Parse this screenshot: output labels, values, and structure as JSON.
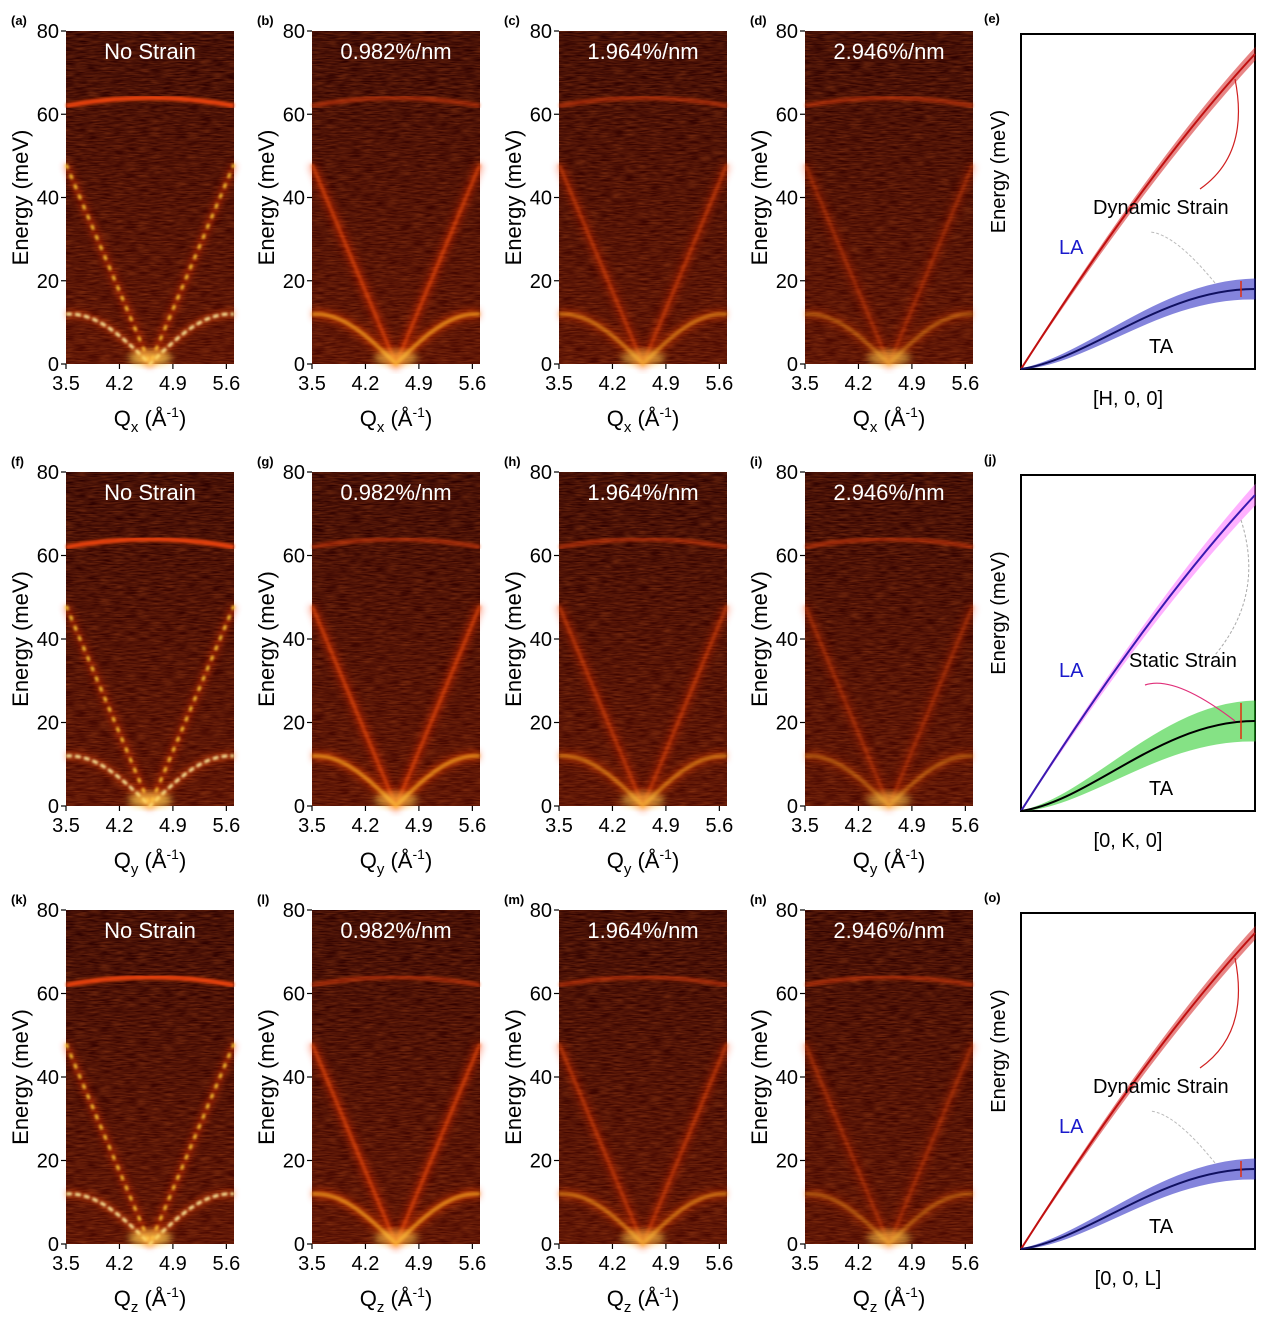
{
  "rows": [
    {
      "qlabel_main": "Q",
      "qlabel_sub": "x",
      "qlabel_unit_pre": " (Å",
      "qlabel_unit_sup": "-1",
      "qlabel_unit_post": ")",
      "panels": [
        {
          "letter": "(a)",
          "title": "No Strain"
        },
        {
          "letter": "(b)",
          "title": "0.982%/nm"
        },
        {
          "letter": "(c)",
          "title": "1.964%/nm"
        },
        {
          "letter": "(d)",
          "title": "2.946%/nm"
        }
      ],
      "schematic": {
        "letter": "(e)",
        "xlabel": "[H, 0, 0]",
        "annotation": "Dynamic Strain",
        "la": "LA",
        "ta": "TA"
      }
    },
    {
      "qlabel_main": "Q",
      "qlabel_sub": "y",
      "qlabel_unit_pre": " (Å",
      "qlabel_unit_sup": "-1",
      "qlabel_unit_post": ")",
      "panels": [
        {
          "letter": "(f)",
          "title": "No Strain"
        },
        {
          "letter": "(g)",
          "title": "0.982%/nm"
        },
        {
          "letter": "(h)",
          "title": "1.964%/nm"
        },
        {
          "letter": "(i)",
          "title": "2.946%/nm"
        }
      ],
      "schematic": {
        "letter": "(j)",
        "xlabel": "[0, K, 0]",
        "annotation": "Static Strain",
        "la": "LA",
        "ta": "TA"
      }
    },
    {
      "qlabel_main": "Q",
      "qlabel_sub": "z",
      "qlabel_unit_pre": " (Å",
      "qlabel_unit_sup": "-1",
      "qlabel_unit_post": ")",
      "panels": [
        {
          "letter": "(k)",
          "title": "No Strain"
        },
        {
          "letter": "(l)",
          "title": "0.982%/nm"
        },
        {
          "letter": "(m)",
          "title": "1.964%/nm"
        },
        {
          "letter": "(n)",
          "title": "2.946%/nm"
        }
      ],
      "schematic": {
        "letter": "(o)",
        "xlabel": "[0, 0, L]",
        "annotation": "Dynamic Strain",
        "la": "LA",
        "ta": "TA"
      }
    }
  ],
  "ylabel": "Energy (meV)",
  "chart_data": {
    "type": "heatmap",
    "x_ticks": [
      "3.5",
      "4.2",
      "4.9",
      "5.6"
    ],
    "x_tick_values": [
      3.5,
      4.2,
      4.9,
      5.6
    ],
    "y_ticks": [
      "0",
      "20",
      "40",
      "60",
      "80"
    ],
    "y_tick_values": [
      0,
      20,
      40,
      60,
      80
    ],
    "xlim": [
      3.5,
      5.7
    ],
    "ylim": [
      0,
      80
    ],
    "colormap": "hot",
    "dispersion": {
      "q_center": 4.6,
      "la_energy_at_q_3_5": 48,
      "ta_max_energy": 12,
      "optical_energy": 62
    },
    "schematic_colors": {
      "dynamic_la": "#d01010",
      "dynamic_ta": "#2020c0",
      "static_la": "#ff66ff",
      "static_ta": "#22cc22",
      "la_label": "#1a1acc"
    }
  }
}
